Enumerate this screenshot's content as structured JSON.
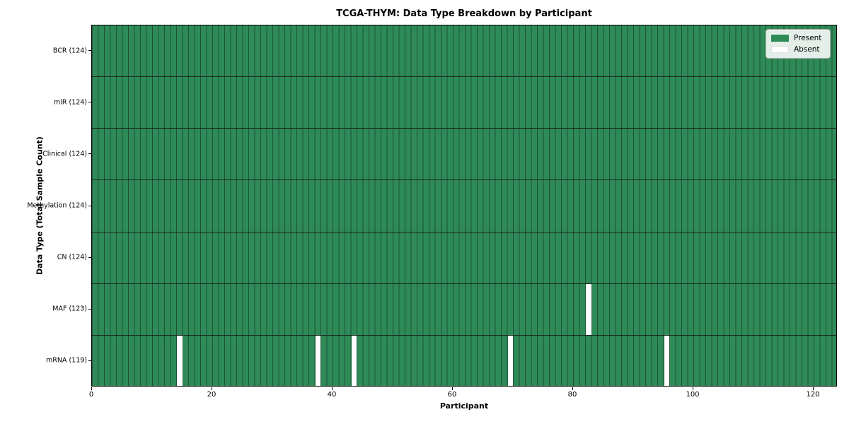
{
  "chart_data": {
    "type": "heatmap",
    "title": "TCGA-THYM: Data Type Breakdown by Participant",
    "xlabel": "Participant",
    "ylabel": "Data Type (Total Sample Count)",
    "n_participants": 124,
    "x_axis": {
      "ticks": [
        0,
        20,
        40,
        60,
        80,
        100,
        120
      ],
      "range": [
        0,
        124
      ]
    },
    "rows": [
      {
        "label": "BCR (124)",
        "data_type": "BCR",
        "present_count": 124,
        "absent_participant_indices": []
      },
      {
        "label": "miR (124)",
        "data_type": "miR",
        "present_count": 124,
        "absent_participant_indices": []
      },
      {
        "label": "Clinical (124)",
        "data_type": "Clinical",
        "present_count": 124,
        "absent_participant_indices": []
      },
      {
        "label": "Methylation (124)",
        "data_type": "Methylation",
        "present_count": 124,
        "absent_participant_indices": []
      },
      {
        "label": "CN (124)",
        "data_type": "CN",
        "present_count": 124,
        "absent_participant_indices": []
      },
      {
        "label": "MAF (123)",
        "data_type": "MAF",
        "present_count": 123,
        "absent_participant_indices": [
          82
        ]
      },
      {
        "label": "mRNA (119)",
        "data_type": "mRNA",
        "present_count": 119,
        "absent_participant_indices": [
          14,
          37,
          43,
          69,
          95
        ]
      }
    ],
    "legend": {
      "position": "upper right",
      "entries": [
        {
          "label": "Present",
          "color": "#2e8b57"
        },
        {
          "label": "Absent",
          "color": "#ffffff"
        }
      ]
    },
    "colors": {
      "present": "#2e8b57",
      "absent": "#ffffff",
      "column_gridline": "#1f5038",
      "row_separator": "#17251d",
      "spine": "#000000"
    },
    "grid": true
  }
}
